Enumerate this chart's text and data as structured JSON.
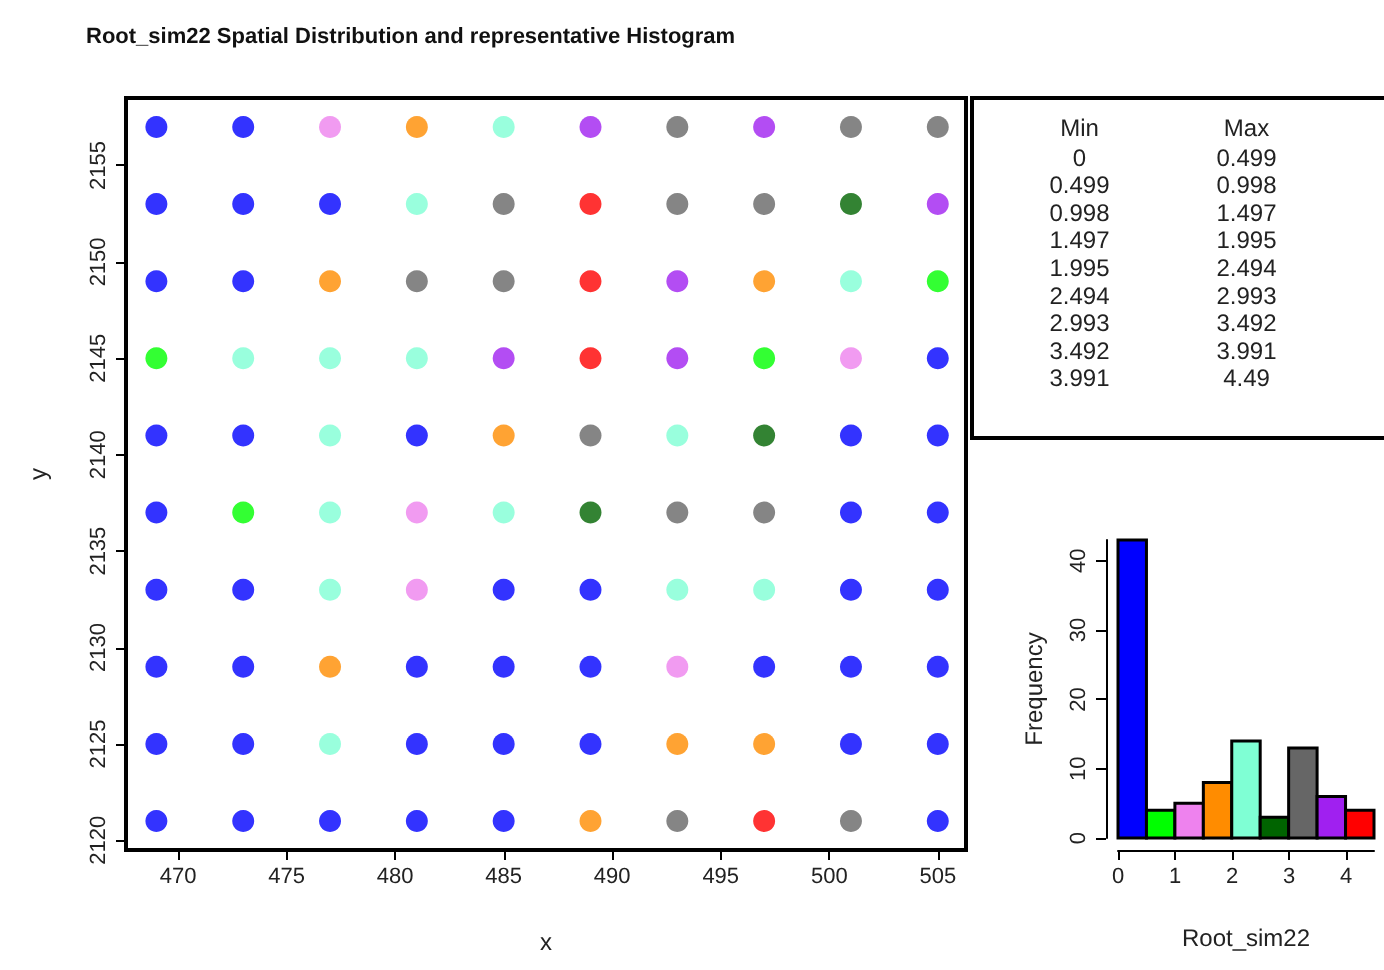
{
  "chart_data": [
    {
      "type": "scatter",
      "title": "Root_sim22 Spatial Distribution and representative Histogram",
      "xlabel": "x",
      "ylabel": "y",
      "xlim": [
        467.6,
        506.3
      ],
      "ylim": [
        2119.5,
        2158.5
      ],
      "xticks": [
        470,
        475,
        480,
        485,
        490,
        495,
        500,
        505
      ],
      "yticks": [
        2120,
        2125,
        2130,
        2135,
        2140,
        2145,
        2150,
        2155
      ],
      "grid": false,
      "marker": "circle",
      "series": [
        {
          "color": "#0000ff",
          "x": [
            469,
            473,
            469,
            473,
            477,
            469,
            473,
            505,
            469,
            473,
            481,
            501,
            505,
            469,
            501,
            505,
            469,
            473,
            485,
            489,
            501,
            505,
            469,
            473,
            481,
            485,
            489,
            497,
            501,
            505,
            469,
            473,
            481,
            485,
            489,
            501,
            505,
            469,
            473,
            477,
            481,
            485,
            505
          ],
          "values": [
            2157,
            2157,
            2153,
            2153,
            2153,
            2149,
            2149,
            2145,
            2141,
            2141,
            2141,
            2141,
            2141,
            2137,
            2137,
            2137,
            2133,
            2133,
            2133,
            2133,
            2133,
            2133,
            2129,
            2129,
            2129,
            2129,
            2129,
            2129,
            2129,
            2129,
            2125,
            2125,
            2125,
            2125,
            2125,
            2125,
            2125,
            2121,
            2121,
            2121,
            2121,
            2121,
            2121
          ]
        },
        {
          "color": "#00ff00",
          "x": [
            505,
            469,
            497,
            473
          ],
          "values": [
            2149,
            2145,
            2145,
            2137
          ]
        },
        {
          "color": "#ee82ee",
          "x": [
            477,
            501,
            481,
            481,
            493
          ],
          "values": [
            2157,
            2145,
            2137,
            2133,
            2129
          ]
        },
        {
          "color": "#ff8c00",
          "x": [
            481,
            477,
            497,
            485,
            477,
            493,
            497,
            489
          ],
          "values": [
            2157,
            2149,
            2149,
            2141,
            2129,
            2125,
            2125,
            2121
          ]
        },
        {
          "color": "#7fffd4",
          "x": [
            485,
            481,
            501,
            473,
            477,
            481,
            477,
            493,
            477,
            485,
            477,
            493,
            497,
            477
          ],
          "values": [
            2157,
            2153,
            2149,
            2145,
            2145,
            2145,
            2141,
            2141,
            2137,
            2137,
            2133,
            2133,
            2133,
            2125
          ]
        },
        {
          "color": "#006400",
          "x": [
            501,
            497,
            489
          ],
          "values": [
            2153,
            2141,
            2137
          ]
        },
        {
          "color": "#666666",
          "x": [
            493,
            501,
            505,
            485,
            493,
            497,
            481,
            485,
            489,
            493,
            497,
            493,
            501
          ],
          "values": [
            2157,
            2157,
            2157,
            2153,
            2153,
            2153,
            2149,
            2149,
            2141,
            2137,
            2137,
            2121,
            2121
          ]
        },
        {
          "color": "#a020f0",
          "x": [
            489,
            497,
            505,
            493,
            485,
            493
          ],
          "values": [
            2157,
            2157,
            2153,
            2149,
            2145,
            2145
          ]
        },
        {
          "color": "#ff0000",
          "x": [
            489,
            489,
            489,
            497
          ],
          "values": [
            2153,
            2149,
            2145,
            2121
          ]
        }
      ]
    },
    {
      "type": "heatmap",
      "data_labels": true,
      "categories": [
        "Min",
        "Max"
      ],
      "y_categories": [
        null,
        null,
        null,
        null,
        null,
        null,
        null,
        null,
        null
      ],
      "cells": [
        [
          0,
          0.499
        ],
        [
          0.499,
          0.998
        ],
        [
          0.998,
          1.497
        ],
        [
          1.497,
          1.995
        ],
        [
          1.995,
          2.494
        ],
        [
          2.494,
          2.993
        ],
        [
          2.993,
          3.492
        ],
        [
          3.492,
          3.991
        ],
        [
          3.991,
          4.49
        ]
      ]
    },
    {
      "type": "histogram",
      "xlabel": "Root_sim22",
      "ylabel": "Frequency",
      "bins": [
        0,
        0.499,
        0.998,
        1.497,
        1.995,
        2.494,
        2.993,
        3.492,
        3.991,
        4.49
      ],
      "values": [
        43,
        4,
        5,
        8,
        14,
        3,
        13,
        6,
        4
      ],
      "colors": [
        "#0000ff",
        "#00ff00",
        "#ee82ee",
        "#ff8c00",
        "#7fffd4",
        "#006400",
        "#666666",
        "#a020f0",
        "#ff0000"
      ],
      "xlim": [
        0,
        4.49
      ],
      "ylim": [
        0,
        43
      ],
      "xticks": [
        0,
        1,
        2,
        3,
        4
      ],
      "yticks": [
        0,
        10,
        20,
        30,
        40
      ],
      "grid": false
    }
  ]
}
